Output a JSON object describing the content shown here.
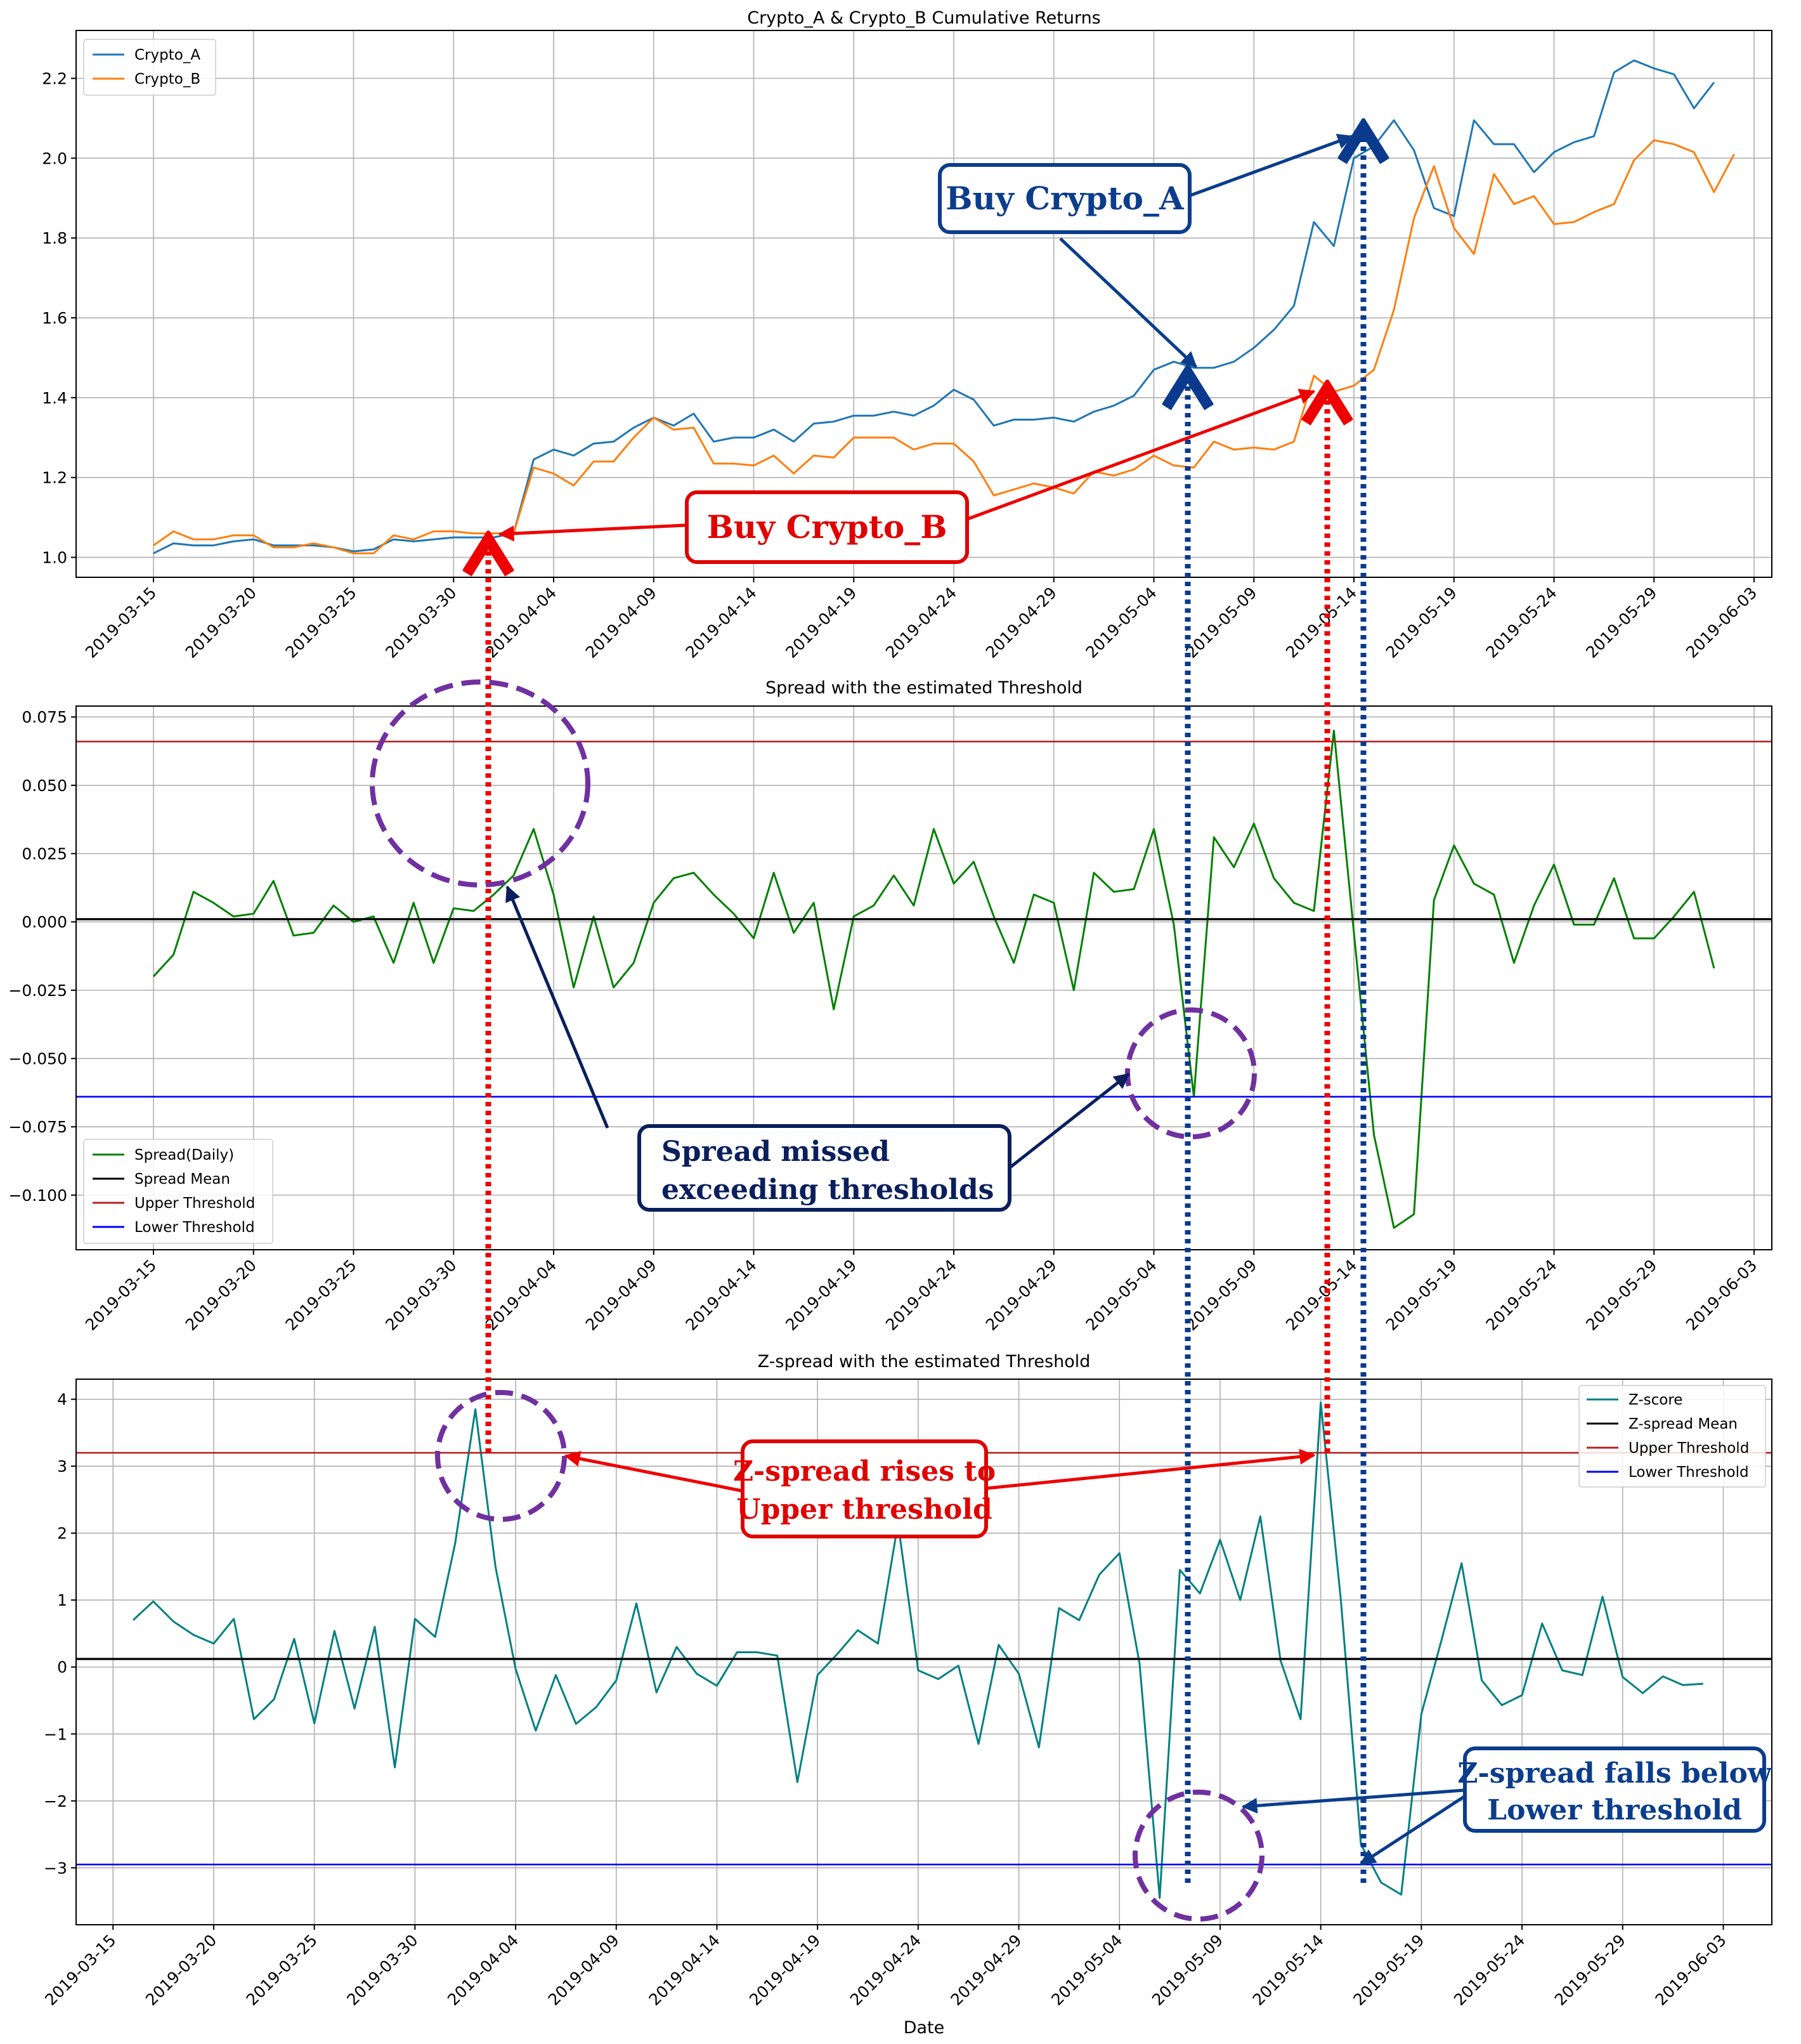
{
  "chart_data": [
    {
      "type": "line",
      "title": "Crypto_A & Crypto_B Cumulative Returns",
      "xlabel": "",
      "ylabel": "",
      "x_tick_labels": [
        "2019-03-15",
        "2019-03-20",
        "2019-03-25",
        "2019-03-30",
        "2019-04-04",
        "2019-04-09",
        "2019-04-14",
        "2019-04-19",
        "2019-04-24",
        "2019-04-29",
        "2019-05-04",
        "2019-05-09",
        "2019-05-14",
        "2019-05-19",
        "2019-05-24",
        "2019-05-29",
        "2019-06-03"
      ],
      "y_tick_labels": [
        "1.0",
        "1.2",
        "1.4",
        "1.6",
        "1.8",
        "2.0",
        "2.2"
      ],
      "ylim": [
        0.95,
        2.32
      ],
      "x_start": "2019-03-15",
      "grid": true,
      "legend_position": "top-left",
      "series": [
        {
          "name": "Crypto_A",
          "color": "#1f77b4",
          "values": [
            1.01,
            1.035,
            1.03,
            1.03,
            1.04,
            1.045,
            1.03,
            1.03,
            1.03,
            1.025,
            1.015,
            1.02,
            1.045,
            1.04,
            1.045,
            1.05,
            1.05,
            1.05,
            1.06,
            1.245,
            1.27,
            1.255,
            1.285,
            1.29,
            1.325,
            1.35,
            1.33,
            1.36,
            1.29,
            1.3,
            1.3,
            1.32,
            1.29,
            1.335,
            1.34,
            1.355,
            1.355,
            1.365,
            1.355,
            1.38,
            1.42,
            1.395,
            1.33,
            1.345,
            1.345,
            1.35,
            1.34,
            1.365,
            1.38,
            1.405,
            1.47,
            1.49,
            1.475,
            1.475,
            1.49,
            1.525,
            1.57,
            1.63,
            1.84,
            1.78,
            2.0,
            2.03,
            2.095,
            2.02,
            1.875,
            1.855,
            2.095,
            2.035,
            2.035,
            1.965,
            2.015,
            2.04,
            2.055,
            2.215,
            2.245,
            2.225,
            2.21,
            2.125,
            2.19
          ]
        },
        {
          "name": "Crypto_B",
          "color": "#ff7f0e",
          "values": [
            1.03,
            1.065,
            1.045,
            1.045,
            1.055,
            1.055,
            1.025,
            1.025,
            1.035,
            1.025,
            1.01,
            1.01,
            1.055,
            1.045,
            1.065,
            1.065,
            1.06,
            1.06,
            1.06,
            1.225,
            1.21,
            1.18,
            1.24,
            1.24,
            1.3,
            1.35,
            1.32,
            1.325,
            1.235,
            1.235,
            1.23,
            1.255,
            1.21,
            1.255,
            1.25,
            1.3,
            1.3,
            1.3,
            1.27,
            1.285,
            1.285,
            1.24,
            1.155,
            1.17,
            1.185,
            1.175,
            1.16,
            1.215,
            1.205,
            1.22,
            1.255,
            1.23,
            1.225,
            1.29,
            1.27,
            1.275,
            1.27,
            1.29,
            1.455,
            1.415,
            1.43,
            1.47,
            1.62,
            1.85,
            1.98,
            1.825,
            1.76,
            1.96,
            1.885,
            1.905,
            1.835,
            1.84,
            1.865,
            1.885,
            1.995,
            2.045,
            2.035,
            2.015,
            1.915,
            2.01
          ]
        }
      ]
    },
    {
      "type": "line",
      "title": "Spread with the estimated Threshold",
      "xlabel": "",
      "ylabel": "",
      "x_tick_labels": [
        "2019-03-15",
        "2019-03-20",
        "2019-03-25",
        "2019-03-30",
        "2019-04-04",
        "2019-04-09",
        "2019-04-14",
        "2019-04-19",
        "2019-04-24",
        "2019-04-29",
        "2019-05-04",
        "2019-05-09",
        "2019-05-14",
        "2019-05-19",
        "2019-05-24",
        "2019-05-29",
        "2019-06-03"
      ],
      "y_tick_labels": [
        "−0.100",
        "−0.075",
        "−0.050",
        "−0.025",
        "0.000",
        "0.025",
        "0.050",
        "0.075"
      ],
      "ylim": [
        -0.12,
        0.079
      ],
      "x_start": "2019-03-15",
      "grid": true,
      "legend_position": "lower-left",
      "series": [
        {
          "name": "Spread(Daily)",
          "color": "#008000",
          "values": [
            -0.02,
            -0.012,
            0.011,
            0.007,
            0.002,
            0.003,
            0.015,
            -0.005,
            -0.004,
            0.006,
            0.0,
            0.002,
            -0.015,
            0.007,
            -0.015,
            0.005,
            0.004,
            0.01,
            0.017,
            0.034,
            0.01,
            -0.024,
            0.002,
            -0.024,
            -0.015,
            0.007,
            0.016,
            0.018,
            0.01,
            0.003,
            -0.006,
            0.018,
            -0.004,
            0.007,
            -0.032,
            0.002,
            0.006,
            0.017,
            0.006,
            0.034,
            0.014,
            0.022,
            0.002,
            -0.015,
            0.01,
            0.007,
            -0.025,
            0.018,
            0.011,
            0.012,
            0.034,
            -0.001,
            -0.064,
            0.031,
            0.02,
            0.036,
            0.016,
            0.007,
            0.004,
            0.07,
            -0.004,
            -0.078,
            -0.112,
            -0.107,
            0.008,
            0.028,
            0.014,
            0.01,
            -0.015,
            0.006,
            0.021,
            -0.001,
            -0.001,
            0.016,
            -0.006,
            -0.006,
            0.002,
            0.011,
            -0.017
          ]
        },
        {
          "name": "Spread Mean",
          "color": "#000000",
          "values": [
            0.001
          ]
        },
        {
          "name": "Upper Threshold",
          "color": "#b22222",
          "values": [
            0.066
          ]
        },
        {
          "name": "Lower Threshold",
          "color": "#0000ff",
          "values": [
            -0.064
          ]
        }
      ]
    },
    {
      "type": "line",
      "title": "Z-spread with the estimated Threshold",
      "xlabel": "Date",
      "ylabel": "",
      "x_tick_labels": [
        "2019-03-15",
        "2019-03-20",
        "2019-03-25",
        "2019-03-30",
        "2019-04-04",
        "2019-04-09",
        "2019-04-14",
        "2019-04-19",
        "2019-04-24",
        "2019-04-29",
        "2019-05-04",
        "2019-05-09",
        "2019-05-14",
        "2019-05-19",
        "2019-05-24",
        "2019-05-29",
        "2019-06-03"
      ],
      "y_tick_labels": [
        "−3",
        "−2",
        "−1",
        "0",
        "1",
        "2",
        "3",
        "4"
      ],
      "ylim": [
        -3.85,
        4.3
      ],
      "x_start": "2019-03-16",
      "grid": true,
      "legend_position": "top-right",
      "series": [
        {
          "name": "Z-score",
          "color": "#008080",
          "values": [
            0.7,
            0.98,
            0.68,
            0.48,
            0.35,
            0.72,
            -0.78,
            -0.48,
            0.42,
            -0.84,
            0.54,
            -0.62,
            0.6,
            -1.5,
            0.72,
            0.45,
            1.85,
            3.85,
            1.5,
            -0.03,
            -0.95,
            -0.12,
            -0.85,
            -0.6,
            -0.2,
            0.95,
            -0.38,
            0.3,
            -0.1,
            -0.28,
            0.22,
            0.22,
            0.17,
            -1.72,
            -0.12,
            0.2,
            0.55,
            0.35,
            2.15,
            -0.05,
            -0.18,
            0.02,
            -1.15,
            0.33,
            -0.1,
            -1.2,
            0.88,
            0.7,
            1.38,
            1.7,
            0.05,
            -3.45,
            1.45,
            1.1,
            1.9,
            1.0,
            2.25,
            0.1,
            -0.78,
            3.95,
            1.0,
            -2.65,
            -3.22,
            -3.4,
            -0.7,
            0.4,
            1.55,
            -0.2,
            -0.57,
            -0.42,
            0.65,
            -0.05,
            -0.12,
            1.05,
            -0.15,
            -0.39,
            -0.14,
            -0.27,
            -0.25
          ]
        },
        {
          "name": "Z-spread Mean",
          "color": "#000000",
          "values": [
            0.12
          ]
        },
        {
          "name": "Upper Threshold",
          "color": "#b22222",
          "values": [
            3.2
          ]
        },
        {
          "name": "Lower Threshold",
          "color": "#0000ff",
          "values": [
            -2.95
          ]
        }
      ]
    }
  ],
  "annotations": {
    "buy_a": "Buy Crypto_A",
    "buy_b": "Buy Crypto_B",
    "spread_missed_1": "Spread missed",
    "spread_missed_2": "exceeding thresholds",
    "zspread_rises_1": "Z-spread rises to",
    "zspread_rises_2": "Upper threshold",
    "zspread_falls_1": "Z-spread falls below",
    "zspread_falls_2": "Lower threshold"
  },
  "colors": {
    "crypto_a_box": "#0b3d8c",
    "crypto_b_box": "#e00000",
    "spread_box": "#0a1f5c",
    "circle": "#7030a0",
    "red_dots": "#ee0000",
    "blue_dots": "#0a3a8c"
  }
}
